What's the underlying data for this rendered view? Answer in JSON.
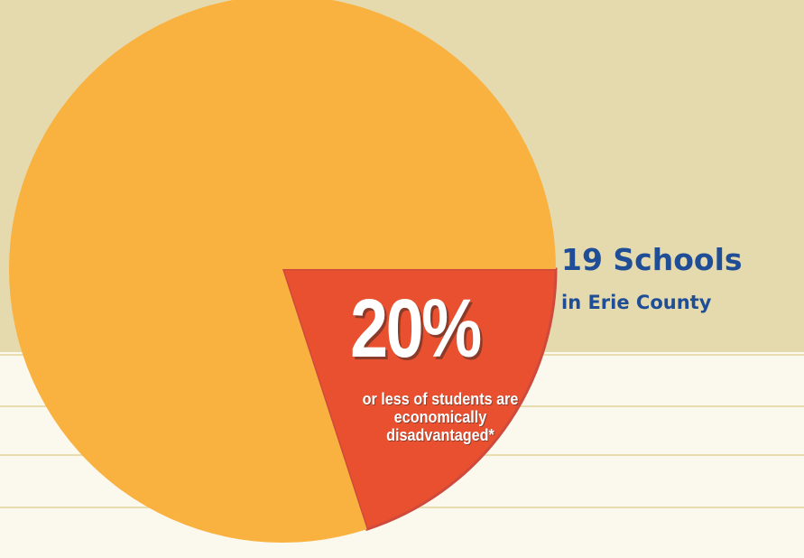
{
  "chart_data": {
    "type": "pie",
    "slices": [
      {
        "label": "20%",
        "value": 20,
        "color": "#e8502f"
      },
      {
        "label": "",
        "value": 80,
        "color": "#f9b140"
      }
    ],
    "annotation": "or less of students are economically disadvantaged*"
  },
  "callout": {
    "title": "19 Schools",
    "subtitle": "in Erie County"
  },
  "colors": {
    "background_top": "#e5daae",
    "background_bottom": "#fbf8ee",
    "highlight_slice": "#e8502f",
    "main_slice": "#f9b140",
    "title_text": "#1f4e96"
  }
}
